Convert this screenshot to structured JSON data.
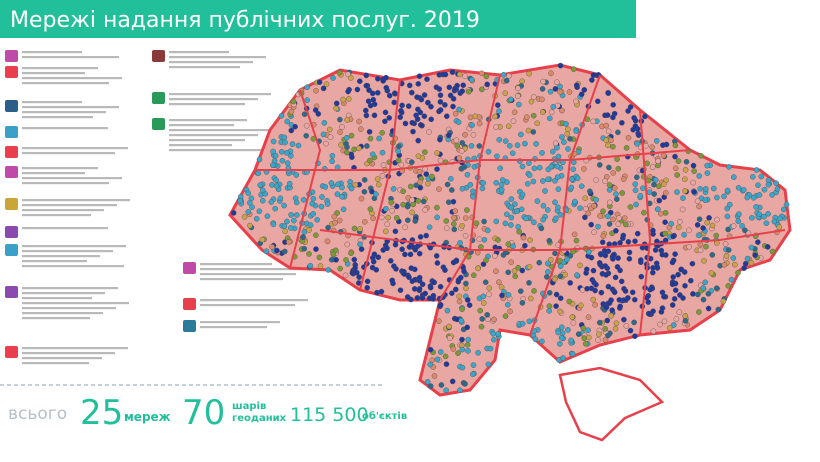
{
  "header": {
    "title": "Мережі надання публічних послуг. 2019"
  },
  "summary": {
    "total_label": "всього",
    "networks": 25,
    "networks_label": "мереж",
    "layers": 70,
    "layers_label": [
      "шарів",
      "геоданих"
    ],
    "objects": "115 500",
    "objects_label": "об'єктів"
  }
}
